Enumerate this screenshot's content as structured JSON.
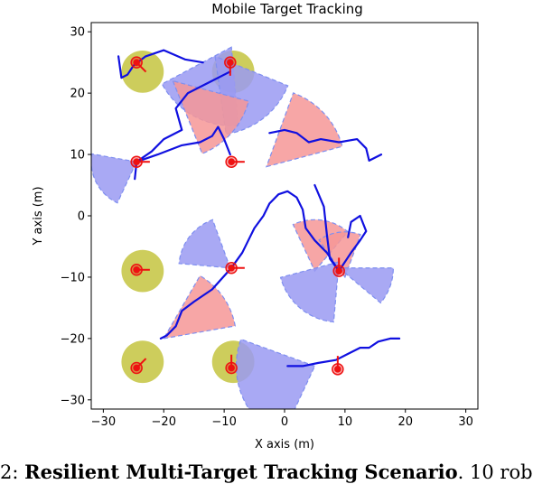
{
  "chart_data": {
    "type": "scatter",
    "title": "Mobile Target Tracking",
    "xlabel": "X axis (m)",
    "ylabel": "Y axis (m)",
    "xlim": [
      -32,
      32
    ],
    "ylim": [
      -31.5,
      31.5
    ],
    "xticks": [
      -30,
      -20,
      -10,
      0,
      10,
      20,
      30
    ],
    "yticks": [
      -30,
      -20,
      -10,
      0,
      10,
      20,
      30
    ],
    "xtick_labels": [
      "−30",
      "−20",
      "−10",
      "0",
      "10",
      "20",
      "30"
    ],
    "ytick_labels": [
      "−30",
      "−20",
      "−10",
      "0",
      "10",
      "20",
      "30"
    ],
    "grid": false,
    "colors": {
      "fov_blue": "#9a9af2",
      "fov_red": "#f69696",
      "fov_edge": "#7f8ff0",
      "trajectory": "#1010e0",
      "robot": "#ee1111",
      "jammed_zone": "#c8c84a"
    },
    "robots": [
      {
        "x": -24.5,
        "y": 25.0,
        "heading": -45
      },
      {
        "x": -9,
        "y": 25.0,
        "heading": -90
      },
      {
        "x": -24.5,
        "y": 8.8,
        "heading": 0
      },
      {
        "x": -8.8,
        "y": 8.8,
        "heading": 0
      },
      {
        "x": -24.5,
        "y": -8.8,
        "heading": 0
      },
      {
        "x": -8.8,
        "y": -8.5,
        "heading": 0
      },
      {
        "x": 9.0,
        "y": -9.0,
        "heading": 90
      },
      {
        "x": -24.5,
        "y": -24.8,
        "heading": 45
      },
      {
        "x": -8.8,
        "y": -24.8,
        "heading": 90
      },
      {
        "x": 8.8,
        "y": -25.0,
        "heading": 90
      }
    ],
    "jammed_zones": [
      {
        "x": -23.5,
        "y": 23.5,
        "r": 3.5
      },
      {
        "x": -8.5,
        "y": 23.5,
        "r": 3.5
      },
      {
        "x": -23.5,
        "y": -9.0,
        "r": 3.5
      },
      {
        "x": -23.5,
        "y": -23.8,
        "r": 3.5
      },
      {
        "x": -8.5,
        "y": -23.8,
        "r": 3.5
      }
    ],
    "fov_sectors": [
      {
        "color": "blue",
        "apex": [
          -24.5,
          8.8
        ],
        "r": 7.5,
        "from": 170,
        "to": 245
      },
      {
        "color": "blue",
        "apex": [
          -8.8,
          27.5
        ],
        "r": 13,
        "from": 208,
        "to": 275
      },
      {
        "color": "blue",
        "apex": [
          -11.5,
          26.0
        ],
        "r": 13,
        "from": 278,
        "to": 338
      },
      {
        "color": "red",
        "apex": [
          -18.5,
          22.0
        ],
        "r": 13,
        "from": 292,
        "to": 345
      },
      {
        "color": "red",
        "apex": [
          -3,
          8.0
        ],
        "r": 13,
        "from": 15,
        "to": 70
      },
      {
        "color": "red",
        "apex": [
          5,
          -9.0
        ],
        "r": 8.5,
        "from": 50,
        "to": 115
      },
      {
        "color": "red",
        "apex": [
          10,
          -10.0
        ],
        "r": 7.5,
        "from": 70,
        "to": 125
      },
      {
        "color": "blue",
        "apex": [
          -9,
          -8.5
        ],
        "r": 8.5,
        "from": 110,
        "to": 175
      },
      {
        "color": "blue",
        "apex": [
          9,
          -8.5
        ],
        "r": 9,
        "from": 320,
        "to": 360
      },
      {
        "color": "blue",
        "apex": [
          9,
          -7.5
        ],
        "r": 10,
        "from": 195,
        "to": 265
      },
      {
        "color": "red",
        "apex": [
          -20,
          -20.0
        ],
        "r": 12,
        "from": 10,
        "to": 60
      },
      {
        "color": "blue",
        "apex": [
          5,
          -24.5
        ],
        "r": 13,
        "from": 160,
        "to": 245
      }
    ],
    "trajectories": [
      {
        "points": [
          [
            -27.5,
            26
          ],
          [
            -27,
            22.5
          ],
          [
            -26,
            23
          ],
          [
            -25,
            24.5
          ],
          [
            -23,
            26
          ],
          [
            -20,
            27
          ],
          [
            -16.5,
            25.5
          ],
          [
            -13.5,
            25
          ]
        ]
      },
      {
        "points": [
          [
            -9,
            23.5
          ],
          [
            -12,
            22
          ],
          [
            -16,
            20
          ],
          [
            -18,
            17.5
          ],
          [
            -17,
            14
          ],
          [
            -20,
            12.5
          ],
          [
            -22,
            10.5
          ],
          [
            -24.5,
            8.8
          ],
          [
            -24.8,
            6
          ]
        ]
      },
      {
        "points": [
          [
            -24.5,
            8.8
          ],
          [
            -21,
            10
          ],
          [
            -17,
            11.5
          ],
          [
            -14,
            12
          ],
          [
            -12,
            13
          ],
          [
            -11,
            14.5
          ],
          [
            -10,
            12.5
          ],
          [
            -9,
            10
          ]
        ]
      },
      {
        "points": [
          [
            -2.5,
            13.5
          ],
          [
            0,
            14
          ],
          [
            2,
            13.5
          ],
          [
            4,
            12
          ],
          [
            6,
            12.5
          ],
          [
            9,
            12
          ],
          [
            12,
            12.5
          ],
          [
            13.5,
            11
          ],
          [
            14,
            9
          ],
          [
            15,
            9.5
          ],
          [
            16,
            10
          ]
        ]
      },
      {
        "points": [
          [
            -8.8,
            -8.5
          ],
          [
            -7,
            -6
          ],
          [
            -6,
            -4
          ],
          [
            -5,
            -2
          ],
          [
            -3.5,
            0
          ],
          [
            -2.5,
            2
          ],
          [
            -1,
            3.5
          ],
          [
            0.5,
            4
          ],
          [
            2,
            3
          ],
          [
            3,
            1
          ],
          [
            3.5,
            -2
          ],
          [
            5,
            -4
          ],
          [
            7,
            -6
          ],
          [
            9,
            -9
          ]
        ]
      },
      {
        "points": [
          [
            5,
            5
          ],
          [
            6.5,
            1.5
          ],
          [
            7,
            -3
          ],
          [
            7.5,
            -7
          ],
          [
            9,
            -9
          ],
          [
            11,
            -6
          ],
          [
            12.5,
            -4
          ],
          [
            13.5,
            -2.5
          ],
          [
            12.5,
            0
          ],
          [
            11,
            -1
          ],
          [
            10.5,
            -3.5
          ]
        ]
      },
      {
        "points": [
          [
            -8.8,
            -8.5
          ],
          [
            -12,
            -12
          ],
          [
            -15,
            -14
          ],
          [
            -17,
            -15.5
          ],
          [
            -18,
            -18
          ],
          [
            -19.5,
            -19.5
          ],
          [
            -20.5,
            -20
          ]
        ]
      },
      {
        "points": [
          [
            0.5,
            -24.5
          ],
          [
            3,
            -24.5
          ],
          [
            5.5,
            -24
          ],
          [
            8.5,
            -23.5
          ],
          [
            10.5,
            -22.5
          ],
          [
            12.5,
            -21.5
          ],
          [
            14,
            -21.5
          ],
          [
            15.5,
            -20.5
          ],
          [
            17.5,
            -20
          ],
          [
            18.5,
            -20
          ],
          [
            19,
            -20
          ]
        ]
      }
    ]
  },
  "caption": {
    "prefix": "2: ",
    "bold": "Resilient Multi-Target Tracking Scenario",
    "rest": ". 10 rob"
  }
}
